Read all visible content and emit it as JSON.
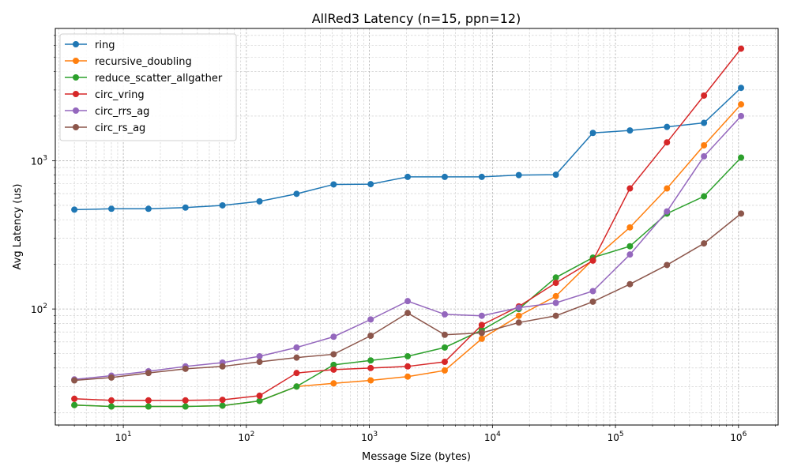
{
  "chart_data": {
    "type": "line",
    "title": "AllRed3 Latency (n=15, ppn=12)",
    "xlabel": "Message Size (bytes)",
    "ylabel": "Avg Latency (us)",
    "xscale": "log",
    "yscale": "log",
    "xlim": [
      2.8,
      2100000
    ],
    "ylim": [
      16.5,
      7800
    ],
    "xticks": [
      {
        "value": 10,
        "base": "10",
        "exp": "1"
      },
      {
        "value": 100,
        "base": "10",
        "exp": "2"
      },
      {
        "value": 1000,
        "base": "10",
        "exp": "3"
      },
      {
        "value": 10000,
        "base": "10",
        "exp": "4"
      },
      {
        "value": 100000,
        "base": "10",
        "exp": "5"
      },
      {
        "value": 1000000,
        "base": "10",
        "exp": "6"
      }
    ],
    "yticks": [
      {
        "value": 100,
        "base": "10",
        "exp": "2"
      },
      {
        "value": 1000,
        "base": "10",
        "exp": "3"
      }
    ],
    "grid": "both major and minor, dashed",
    "legend_position": "top-left",
    "x": [
      4,
      8,
      16,
      32,
      64,
      128,
      256,
      512,
      1024,
      2048,
      4096,
      8192,
      16384,
      32768,
      65536,
      131072,
      262144,
      524288,
      1048576
    ],
    "series": [
      {
        "name": "ring",
        "color": "#1f77b4",
        "values": [
          468,
          474,
          474,
          483,
          500,
          532,
          598,
          692,
          695,
          778,
          778,
          778,
          800,
          805,
          1540,
          1600,
          1690,
          1800,
          3100
        ]
      },
      {
        "name": "recursive_doubling",
        "color": "#ff7f0e",
        "values": [
          22.5,
          22,
          22,
          22,
          22.3,
          24,
          30,
          31.5,
          33,
          35,
          38.5,
          63,
          90,
          122,
          215,
          355,
          650,
          1270,
          2400
        ]
      },
      {
        "name": "reduce_scatter_allgather",
        "color": "#2ca02c",
        "values": [
          22.5,
          22,
          22,
          22,
          22.3,
          24,
          30,
          42,
          45,
          48,
          55,
          72,
          100,
          163,
          222,
          265,
          440,
          575,
          1050
        ]
      },
      {
        "name": "circ_vring",
        "color": "#d62728",
        "values": [
          24.8,
          24.2,
          24.2,
          24.2,
          24.4,
          26,
          37,
          39,
          40,
          41,
          44,
          78,
          104,
          150,
          212,
          650,
          1330,
          2750,
          5700
        ]
      },
      {
        "name": "circ_rrs_ag",
        "color": "#9467bd",
        "values": [
          33.5,
          35.5,
          38,
          41,
          43.5,
          48,
          55,
          65,
          85,
          113,
          92,
          90,
          102,
          110,
          132,
          233,
          455,
          1070,
          2000
        ]
      },
      {
        "name": "circ_rs_ag",
        "color": "#8c564b",
        "values": [
          33,
          34.5,
          37,
          39.5,
          41,
          44,
          47,
          49.5,
          66,
          94,
          67,
          69,
          81,
          90,
          112,
          147,
          198,
          277,
          440
        ]
      }
    ]
  }
}
